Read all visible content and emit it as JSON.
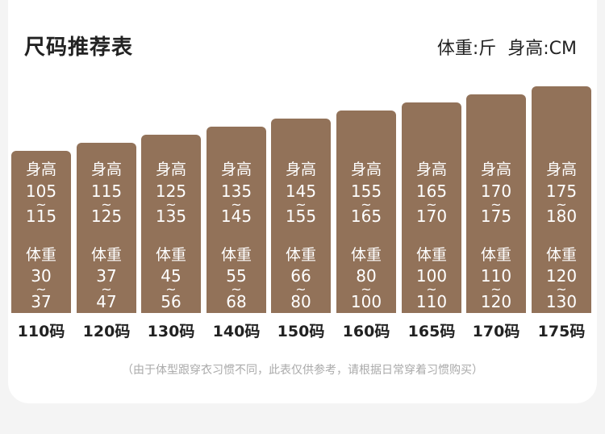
{
  "header": {
    "title": "尺码推荐表",
    "weight_unit": "体重:斤",
    "height_unit": "身高:CM"
  },
  "labels": {
    "height": "身高",
    "weight": "体重",
    "tilde": "~"
  },
  "sizes": [
    {
      "size": "110码",
      "height_min": "105",
      "height_max": "115",
      "weight_min": "30",
      "weight_max": "37"
    },
    {
      "size": "120码",
      "height_min": "115",
      "height_max": "125",
      "weight_min": "37",
      "weight_max": "47"
    },
    {
      "size": "130码",
      "height_min": "125",
      "height_max": "135",
      "weight_min": "45",
      "weight_max": "56"
    },
    {
      "size": "140码",
      "height_min": "135",
      "height_max": "145",
      "weight_min": "55",
      "weight_max": "68"
    },
    {
      "size": "150码",
      "height_min": "145",
      "height_max": "155",
      "weight_min": "66",
      "weight_max": "80"
    },
    {
      "size": "160码",
      "height_min": "155",
      "height_max": "165",
      "weight_min": "80",
      "weight_max": "100"
    },
    {
      "size": "165码",
      "height_min": "165",
      "height_max": "170",
      "weight_min": "100",
      "weight_max": "110"
    },
    {
      "size": "170码",
      "height_min": "170",
      "height_max": "175",
      "weight_min": "110",
      "weight_max": "120"
    },
    {
      "size": "175码",
      "height_min": "175",
      "height_max": "180",
      "weight_min": "120",
      "weight_max": "130"
    }
  ],
  "note": "（由于体型跟穿衣习惯不同，此表仅供参考，请根据日常穿着习惯购买）",
  "colors": {
    "bar": "#927259",
    "text": "#222222",
    "note": "#aaaaaa"
  }
}
